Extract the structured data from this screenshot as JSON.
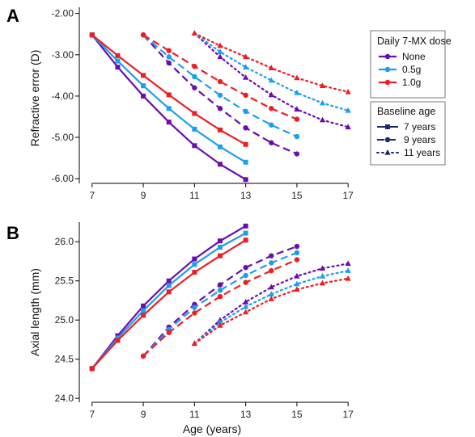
{
  "colors": {
    "None": "#6a0dad",
    "0.5g": "#1a9ff0",
    "1.0g": "#ee1c25"
  },
  "styles": {
    "7 years": "solid",
    "9 years": "dashed",
    "11 years": "dotted"
  },
  "markers": {
    "7 years": "square",
    "9 years": "circle",
    "11 years": "triangle"
  },
  "chart_data": [
    {
      "type": "line",
      "panel_label": "A",
      "xlabel": "",
      "ylabel": "Refractive error (D)",
      "xlim": [
        6.5,
        17.5
      ],
      "ylim": [
        -6.25,
        -1.85
      ],
      "x_ticks": [
        7,
        9,
        11,
        13,
        15,
        17
      ],
      "x_tick_labels": [
        "7",
        "9",
        "11",
        "13",
        "15",
        "17"
      ],
      "y_ticks": [
        -2,
        -3,
        -4,
        -5,
        -6
      ],
      "y_tick_labels": [
        "-2.00",
        "-3.00",
        "-4.00",
        "-5.00",
        "-6.00"
      ],
      "series": [
        {
          "dose": "None",
          "baseline": "7 years",
          "x": [
            7,
            8,
            9,
            10,
            11,
            12,
            13
          ],
          "y": [
            -2.52,
            -3.3,
            -4.0,
            -4.63,
            -5.2,
            -5.65,
            -6.02
          ]
        },
        {
          "dose": "0.5g",
          "baseline": "7 years",
          "x": [
            7,
            8,
            9,
            10,
            11,
            12,
            13
          ],
          "y": [
            -2.52,
            -3.15,
            -3.75,
            -4.3,
            -4.8,
            -5.23,
            -5.6
          ]
        },
        {
          "dose": "1.0g",
          "baseline": "7 years",
          "x": [
            7,
            8,
            9,
            10,
            11,
            12,
            13
          ],
          "y": [
            -2.52,
            -3.02,
            -3.5,
            -3.97,
            -4.42,
            -4.82,
            -5.17
          ]
        },
        {
          "dose": "None",
          "baseline": "9 years",
          "x": [
            9,
            10,
            11,
            12,
            13,
            14,
            15
          ],
          "y": [
            -2.52,
            -3.2,
            -3.8,
            -4.3,
            -4.77,
            -5.13,
            -5.4
          ]
        },
        {
          "dose": "0.5g",
          "baseline": "9 years",
          "x": [
            9,
            10,
            11,
            12,
            13,
            14,
            15
          ],
          "y": [
            -2.52,
            -3.05,
            -3.53,
            -3.98,
            -4.37,
            -4.7,
            -4.98
          ]
        },
        {
          "dose": "1.0g",
          "baseline": "9 years",
          "x": [
            9,
            10,
            11,
            12,
            13,
            14,
            15
          ],
          "y": [
            -2.52,
            -2.9,
            -3.28,
            -3.65,
            -3.98,
            -4.3,
            -4.56
          ]
        },
        {
          "dose": "None",
          "baseline": "11 years",
          "x": [
            11,
            12,
            13,
            14,
            15,
            16,
            17
          ],
          "y": [
            -2.48,
            -3.05,
            -3.55,
            -3.97,
            -4.32,
            -4.58,
            -4.75
          ]
        },
        {
          "dose": "0.5g",
          "baseline": "11 years",
          "x": [
            11,
            12,
            13,
            14,
            15,
            16,
            17
          ],
          "y": [
            -2.48,
            -2.93,
            -3.3,
            -3.62,
            -3.92,
            -4.17,
            -4.35
          ]
        },
        {
          "dose": "1.0g",
          "baseline": "11 years",
          "x": [
            11,
            12,
            13,
            14,
            15,
            16,
            17
          ],
          "y": [
            -2.48,
            -2.78,
            -3.05,
            -3.32,
            -3.56,
            -3.75,
            -3.9
          ]
        }
      ]
    },
    {
      "type": "line",
      "panel_label": "B",
      "xlabel": "Age (years)",
      "ylabel": "Axial length (mm)",
      "xlim": [
        6.5,
        17.5
      ],
      "ylim": [
        23.95,
        26.25
      ],
      "x_ticks": [
        7,
        9,
        11,
        13,
        15,
        17
      ],
      "x_tick_labels": [
        "7",
        "9",
        "11",
        "13",
        "15",
        "17"
      ],
      "y_ticks": [
        24.0,
        24.5,
        25.0,
        25.5,
        26.0
      ],
      "y_tick_labels": [
        "24.0",
        "24.5",
        "25.0",
        "25.5",
        "26.0"
      ],
      "series": [
        {
          "dose": "None",
          "baseline": "7 years",
          "x": [
            7,
            8,
            9,
            10,
            11,
            12,
            13
          ],
          "y": [
            24.38,
            24.8,
            25.18,
            25.5,
            25.78,
            26.01,
            26.2
          ]
        },
        {
          "dose": "0.5g",
          "baseline": "7 years",
          "x": [
            7,
            8,
            9,
            10,
            11,
            12,
            13
          ],
          "y": [
            24.38,
            24.77,
            25.12,
            25.44,
            25.71,
            25.93,
            26.11
          ]
        },
        {
          "dose": "1.0g",
          "baseline": "7 years",
          "x": [
            7,
            8,
            9,
            10,
            11,
            12,
            13
          ],
          "y": [
            24.38,
            24.74,
            25.06,
            25.36,
            25.61,
            25.82,
            26.02
          ]
        },
        {
          "dose": "None",
          "baseline": "9 years",
          "x": [
            9,
            10,
            11,
            12,
            13,
            14,
            15
          ],
          "y": [
            24.54,
            24.91,
            25.2,
            25.45,
            25.67,
            25.82,
            25.94
          ]
        },
        {
          "dose": "0.5g",
          "baseline": "9 years",
          "x": [
            9,
            10,
            11,
            12,
            13,
            14,
            15
          ],
          "y": [
            24.54,
            24.88,
            25.16,
            25.38,
            25.57,
            25.73,
            25.86
          ]
        },
        {
          "dose": "1.0g",
          "baseline": "9 years",
          "x": [
            9,
            10,
            11,
            12,
            13,
            14,
            15
          ],
          "y": [
            24.54,
            24.84,
            25.09,
            25.3,
            25.48,
            25.63,
            25.77
          ]
        },
        {
          "dose": "None",
          "baseline": "11 years",
          "x": [
            11,
            12,
            13,
            14,
            15,
            16,
            17
          ],
          "y": [
            24.7,
            25.0,
            25.23,
            25.42,
            25.56,
            25.66,
            25.72
          ]
        },
        {
          "dose": "0.5g",
          "baseline": "11 years",
          "x": [
            11,
            12,
            13,
            14,
            15,
            16,
            17
          ],
          "y": [
            24.7,
            24.97,
            25.17,
            25.33,
            25.46,
            25.56,
            25.63
          ]
        },
        {
          "dose": "1.0g",
          "baseline": "11 years",
          "x": [
            11,
            12,
            13,
            14,
            15,
            16,
            17
          ],
          "y": [
            24.7,
            24.93,
            25.1,
            25.27,
            25.39,
            25.47,
            25.53
          ]
        }
      ]
    }
  ],
  "legend_dose": {
    "title": "Daily 7-MX dose",
    "items": [
      "None",
      "0.5g",
      "1.0g"
    ]
  },
  "legend_baseline": {
    "title": "Baseline age",
    "items": [
      "7 years",
      "9 years",
      "11 years"
    ]
  }
}
